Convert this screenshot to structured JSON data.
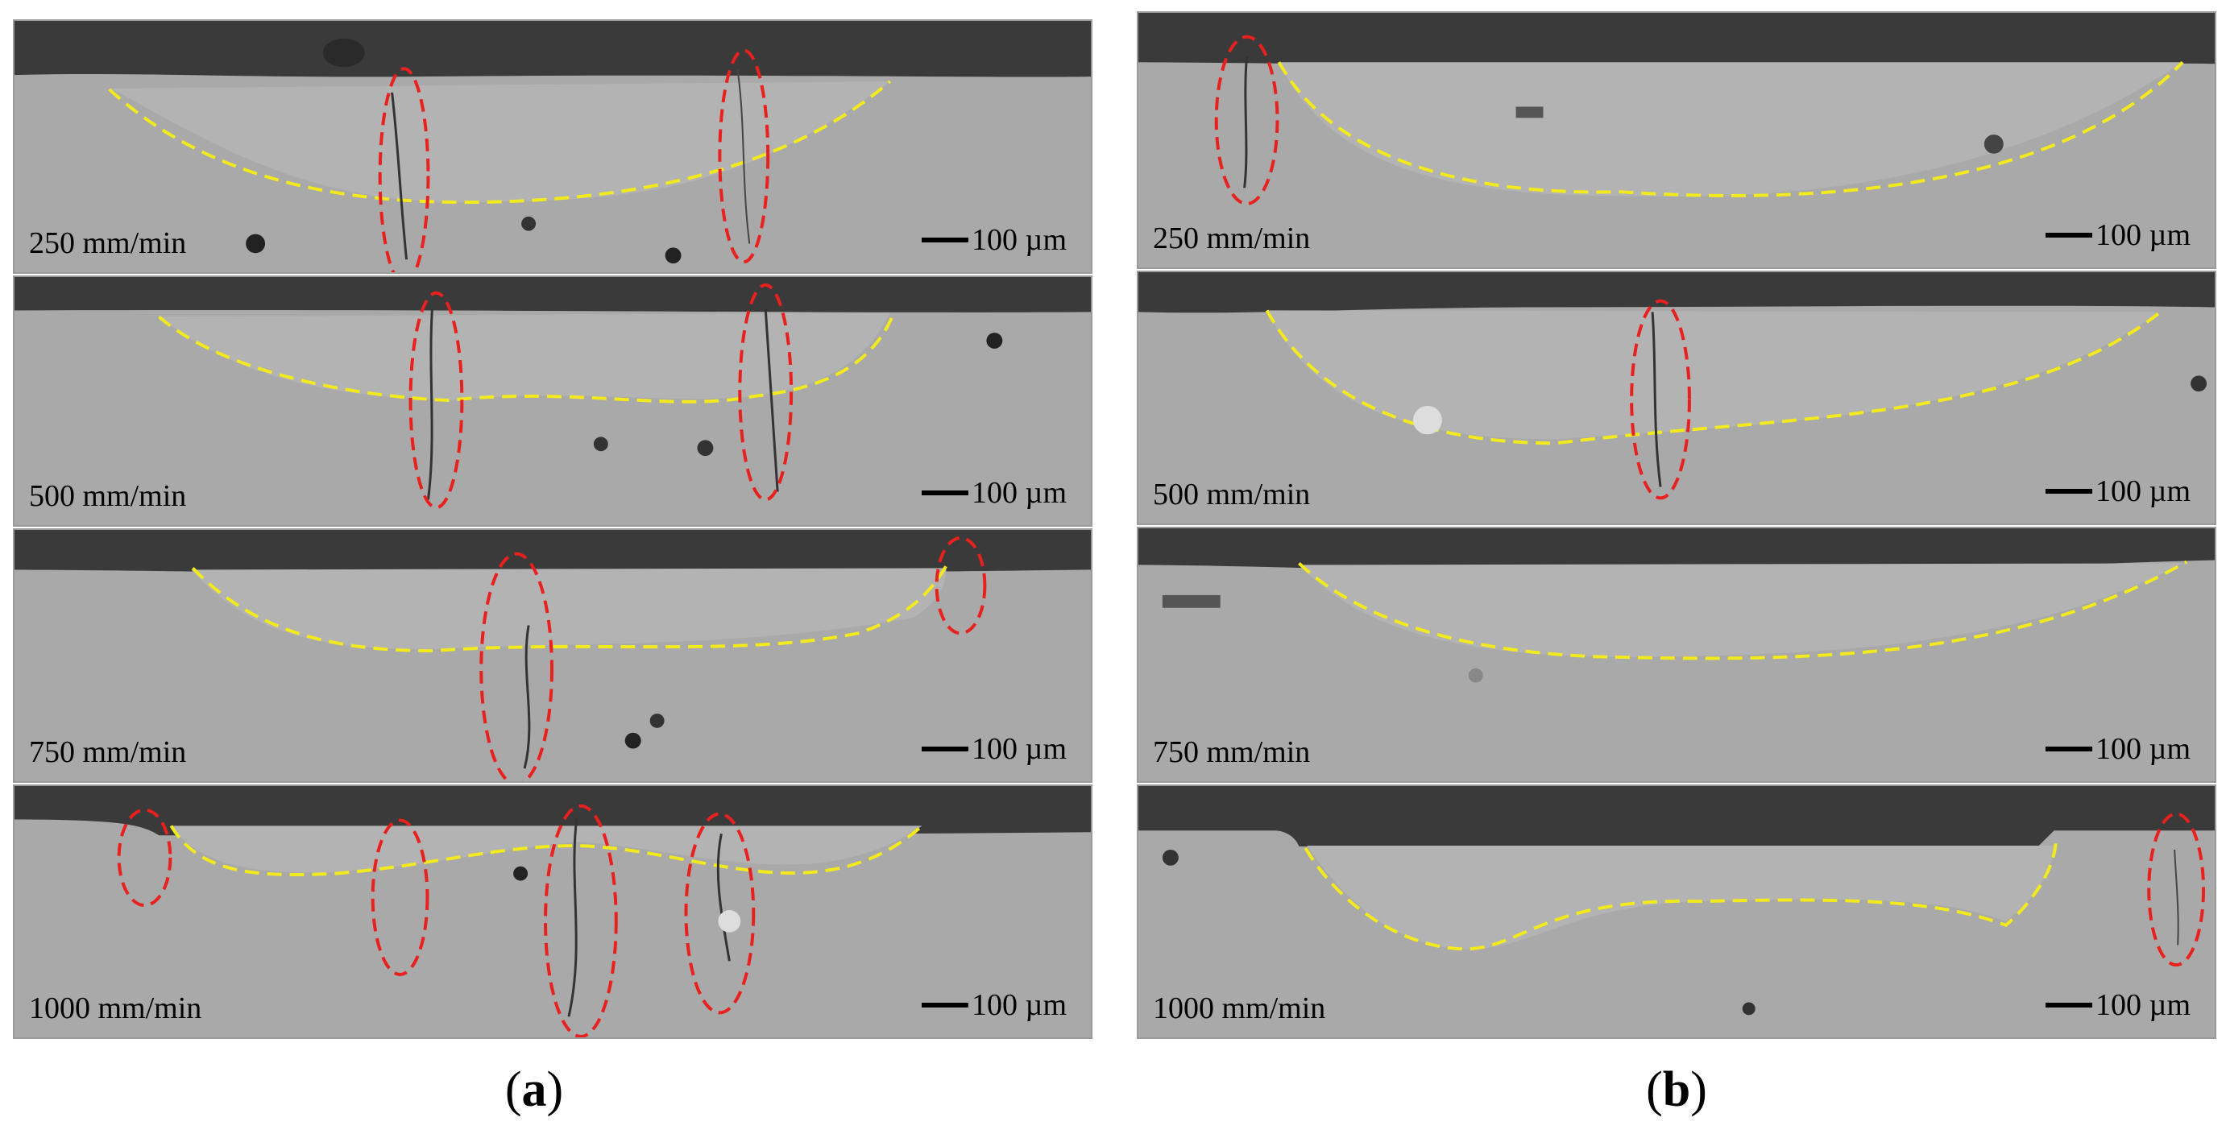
{
  "figure": {
    "columns": [
      {
        "id": "a",
        "caption_open": "(",
        "caption_letter": "a",
        "caption_close": ")",
        "panels": [
          {
            "speed": "250 mm/min",
            "scale": "100 µm"
          },
          {
            "speed": "500 mm/min",
            "scale": "100 µm"
          },
          {
            "speed": "750 mm/min",
            "scale": "100 µm"
          },
          {
            "speed": "1000 mm/min",
            "scale": "100 µm"
          }
        ]
      },
      {
        "id": "b",
        "caption_open": "(",
        "caption_letter": "b",
        "caption_close": ")",
        "panels": [
          {
            "speed": "250 mm/min",
            "scale": "100 µm"
          },
          {
            "speed": "500 mm/min",
            "scale": "100 µm"
          },
          {
            "speed": "750 mm/min",
            "scale": "100 µm"
          },
          {
            "speed": "1000 mm/min",
            "scale": "100 µm"
          }
        ]
      }
    ],
    "colors": {
      "background_resin": "#3a3a3a",
      "substrate": "#a9a9a9",
      "melt_pool_boundary": "#f2ea1c",
      "crack_marker": "#e8201e",
      "crack": "#333333"
    }
  }
}
